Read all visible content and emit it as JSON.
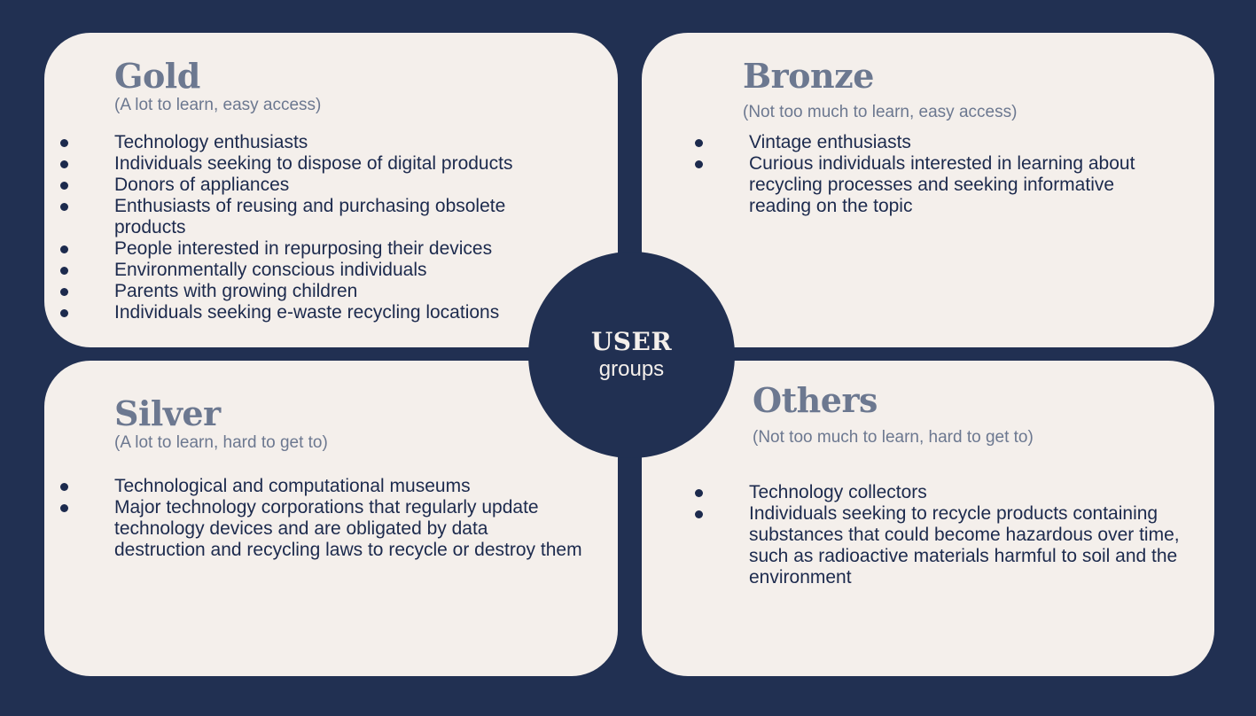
{
  "center": {
    "title": "USER",
    "subtitle": "groups"
  },
  "quadrants": {
    "gold": {
      "title": "Gold",
      "subtitle": "(A lot to learn, easy access)",
      "items": [
        "Technology enthusiasts",
        "Individuals seeking to dispose of digital products",
        "Donors of appliances",
        "Enthusiasts of reusing and purchasing obsolete products",
        "People interested in repurposing their devices",
        "Environmentally conscious individuals",
        "Parents with growing children",
        "Individuals seeking e-waste recycling locations"
      ]
    },
    "bronze": {
      "title": "Bronze",
      "subtitle": "(Not too much to learn, easy access)",
      "items": [
        "Vintage enthusiasts",
        "Curious individuals interested in learning about recycling processes and seeking informative reading on the topic"
      ]
    },
    "silver": {
      "title": "Silver",
      "subtitle": "(A lot to learn, hard to get to)",
      "items": [
        "Technological and computational museums",
        "Major technology corporations that regularly update technology devices and are obligated by data destruction and recycling laws to recycle or destroy them"
      ]
    },
    "others": {
      "title": "Others",
      "subtitle": "(Not too much to learn, hard to get to)",
      "items": [
        "Technology collectors",
        "Individuals seeking to recycle products containing substances that could become hazardous over time, such as radioactive materials harmful to soil and the environment"
      ]
    }
  },
  "colors": {
    "background": "#213052",
    "card": "#f4efeb",
    "heading": "#6c7890",
    "text": "#1c2a4d"
  }
}
